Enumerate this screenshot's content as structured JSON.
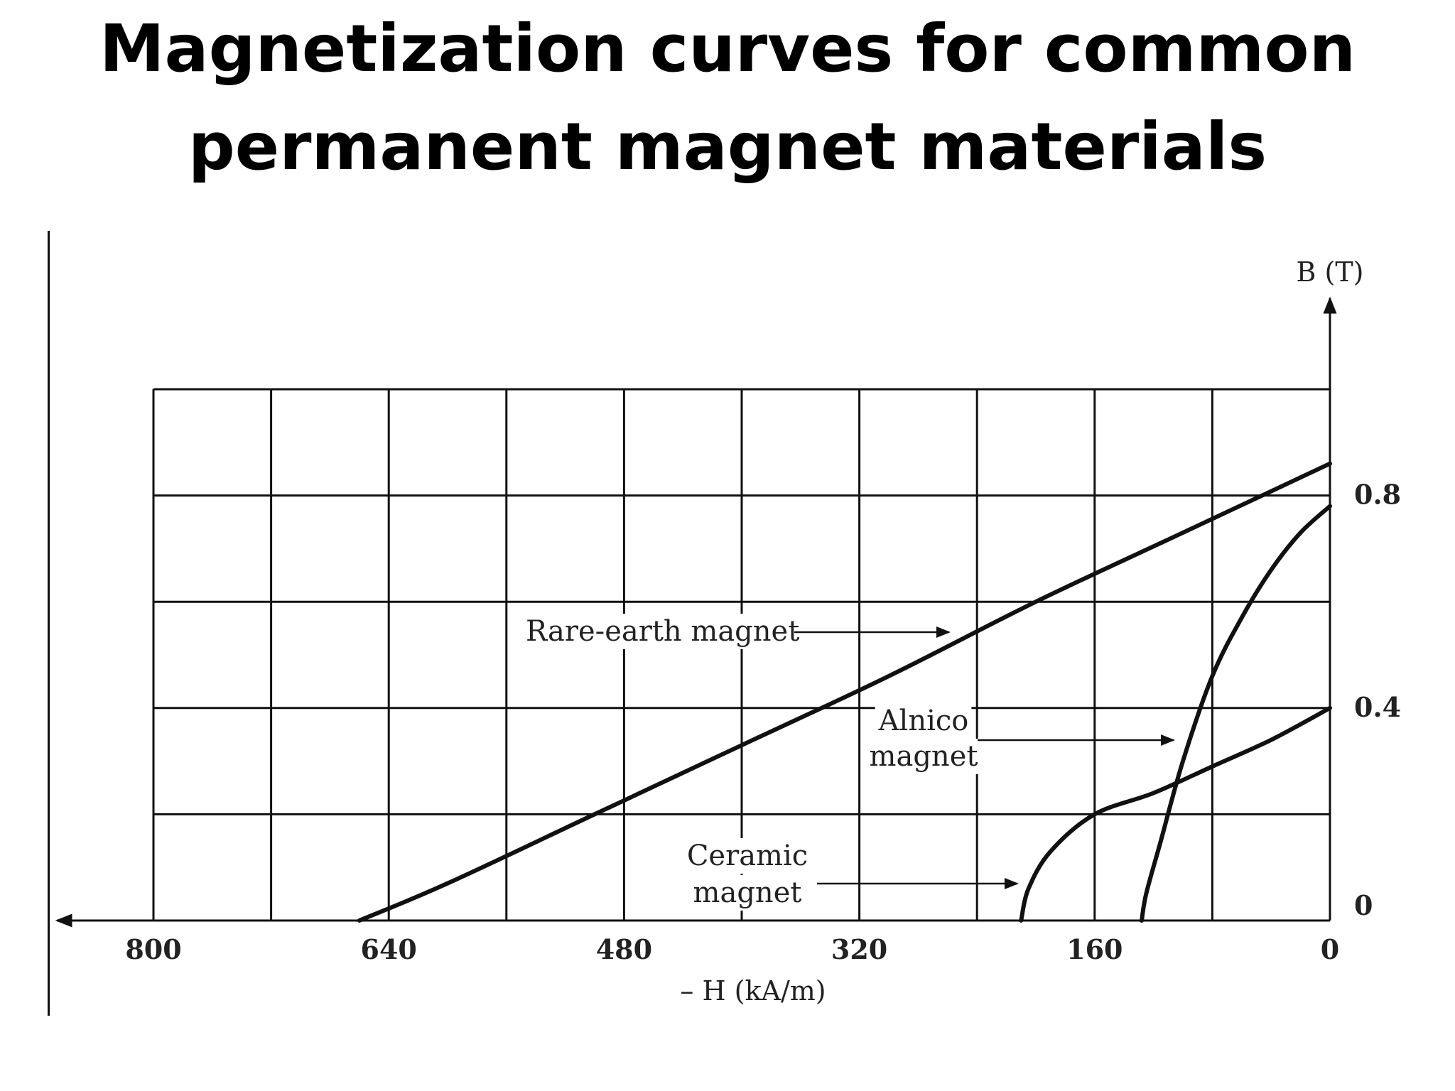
{
  "title": {
    "line1": "Magnetization curves for common",
    "line2": "permanent magnet materials"
  },
  "chart_data": {
    "type": "line",
    "x_axis": {
      "label": "– H (kA/m)",
      "reversed": true,
      "range": [
        0,
        800
      ],
      "tick_labels": [
        "800",
        "640",
        "480",
        "320",
        "160",
        "0"
      ],
      "tick_values": [
        800,
        640,
        480,
        320,
        160,
        0
      ]
    },
    "y_axis": {
      "label": "B (T)",
      "range": [
        0,
        1.0
      ],
      "tick_labels": [
        "0",
        "0.4",
        "0.8"
      ],
      "tick_values": [
        0,
        0.4,
        0.8
      ]
    },
    "grid": true,
    "grid_x": [
      0,
      80,
      160,
      240,
      320,
      400,
      480,
      560,
      640,
      720,
      800
    ],
    "grid_y": [
      0,
      0.2,
      0.4,
      0.6,
      0.8,
      1.0
    ],
    "series": [
      {
        "name": "Rare-earth magnet",
        "points": [
          [
            0,
            0.86
          ],
          [
            100,
            0.73
          ],
          [
            200,
            0.6
          ],
          [
            300,
            0.46
          ],
          [
            400,
            0.33
          ],
          [
            500,
            0.2
          ],
          [
            600,
            0.07
          ],
          [
            660,
            0.0
          ]
        ]
      },
      {
        "name": "Alnico magnet",
        "points": [
          [
            0,
            0.78
          ],
          [
            20,
            0.73
          ],
          [
            40,
            0.66
          ],
          [
            60,
            0.57
          ],
          [
            80,
            0.46
          ],
          [
            100,
            0.3
          ],
          [
            115,
            0.15
          ],
          [
            125,
            0.05
          ],
          [
            128,
            0.0
          ]
        ]
      },
      {
        "name": "Ceramic magnet",
        "points": [
          [
            0,
            0.4
          ],
          [
            40,
            0.34
          ],
          [
            80,
            0.29
          ],
          [
            120,
            0.24
          ],
          [
            160,
            0.2
          ],
          [
            190,
            0.13
          ],
          [
            205,
            0.06
          ],
          [
            210,
            0.0
          ]
        ]
      }
    ],
    "annotations": [
      {
        "text": "Rare-earth magnet",
        "target_series": "Rare-earth magnet"
      },
      {
        "text": "Alnico",
        "text2": "magnet",
        "target_series": "Alnico magnet"
      },
      {
        "text": "Ceramic",
        "text2": "magnet",
        "target_series": "Ceramic magnet"
      }
    ]
  }
}
